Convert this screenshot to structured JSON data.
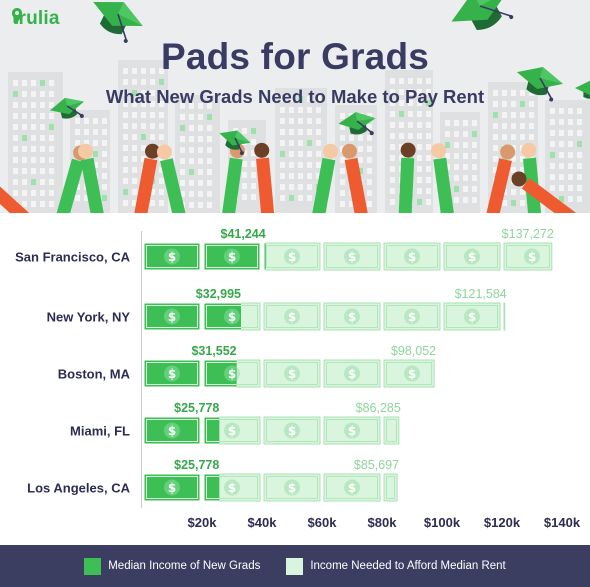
{
  "brand": {
    "name": "trulia",
    "color": "#36b24a"
  },
  "header": {
    "title": "Pads for Grads",
    "subtitle": "What New Grads Need to Make to Pay Rent"
  },
  "colors": {
    "income": "#3dbf55",
    "needed": "#d9f5de",
    "needed_border": "#a8e2b3",
    "text_dark": "#2b2d52",
    "label_green_dark": "#36a84b",
    "label_green_light": "#8ed49c",
    "legend_bg": "#3b3d61"
  },
  "chart_data": {
    "type": "bar",
    "orientation": "horizontal",
    "title": "Pads for Grads",
    "subtitle": "What New Grads Need to Make to Pay Rent",
    "categories": [
      "San Francisco, CA",
      "New York, NY",
      "Boston, MA",
      "Miami, FL",
      "Los Angeles, CA"
    ],
    "series": [
      {
        "name": "Median Income of New Grads",
        "values": [
          41244,
          32995,
          31552,
          25778,
          25778
        ],
        "labels": [
          "$41,244",
          "$32,995",
          "$31,552",
          "$25,778",
          "$25,778"
        ]
      },
      {
        "name": "Income Needed to Afford Median Rent",
        "values": [
          137272,
          121584,
          98052,
          86285,
          85697
        ],
        "labels": [
          "$137,272",
          "$121,584",
          "$98,052",
          "$86,285",
          "$85,697"
        ]
      }
    ],
    "xlim": [
      0,
      140000
    ],
    "xticks": [
      20000,
      40000,
      60000,
      80000,
      100000,
      120000,
      140000
    ],
    "xtick_labels": [
      "$20k",
      "$40k",
      "$60k",
      "$80k",
      "$100k",
      "$120k",
      "$140k"
    ],
    "bar_icon": "dollar-bill-icon",
    "legend_position": "bottom"
  },
  "legend": {
    "items": [
      {
        "label": "Median Income of New Grads"
      },
      {
        "label": "Income Needed to Afford Median Rent"
      }
    ]
  }
}
